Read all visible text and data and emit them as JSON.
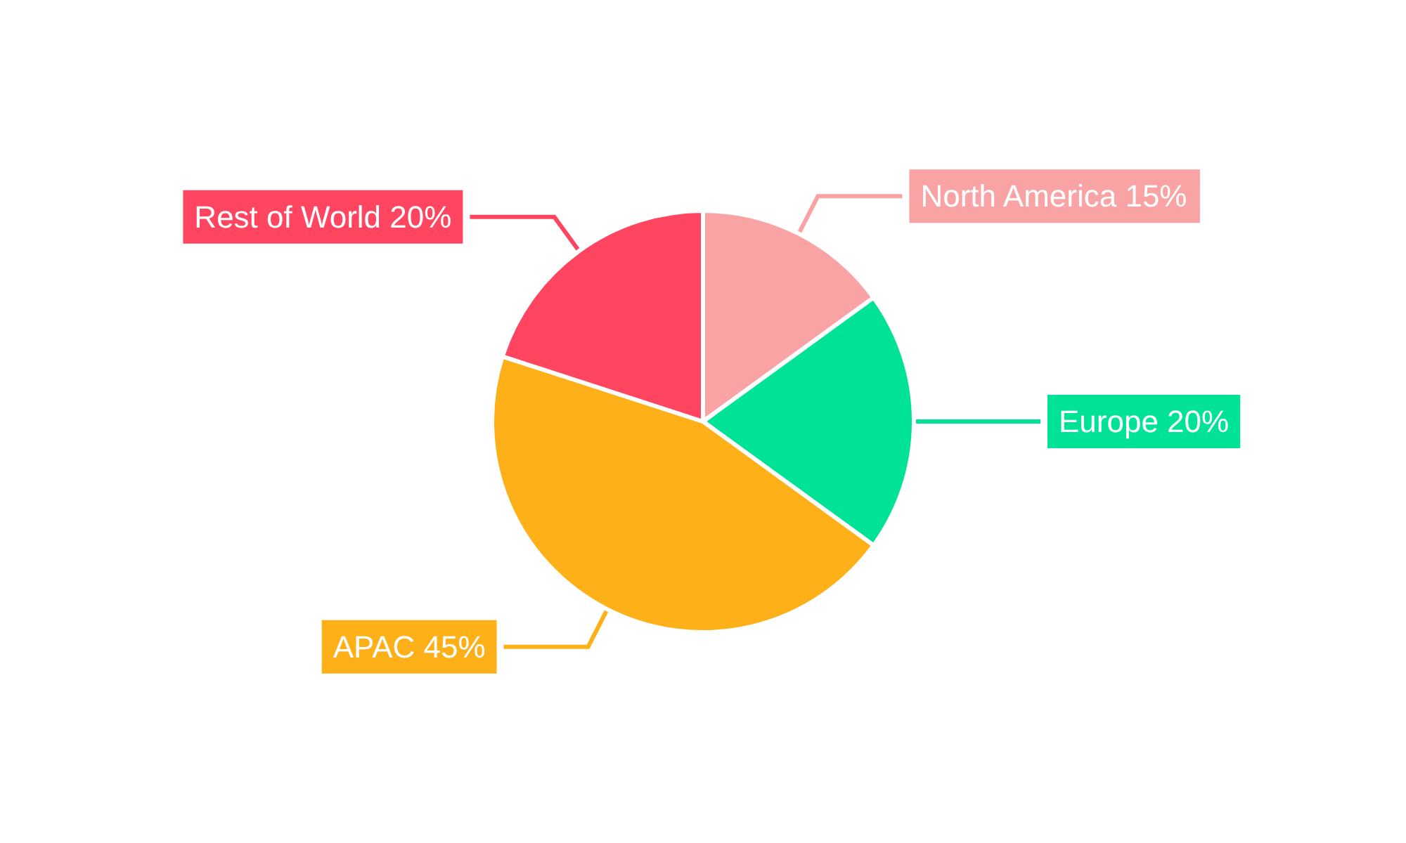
{
  "chart_data": {
    "type": "pie",
    "categories": [
      "North America",
      "Europe",
      "APAC",
      "Rest of World"
    ],
    "values": [
      15,
      20,
      45,
      20
    ],
    "value_labels": [
      "15%",
      "20%",
      "45%",
      "20%"
    ],
    "colors": [
      "#f9a3a4",
      "#00e396",
      "#feb019",
      "#ff4560"
    ],
    "legend": false
  }
}
